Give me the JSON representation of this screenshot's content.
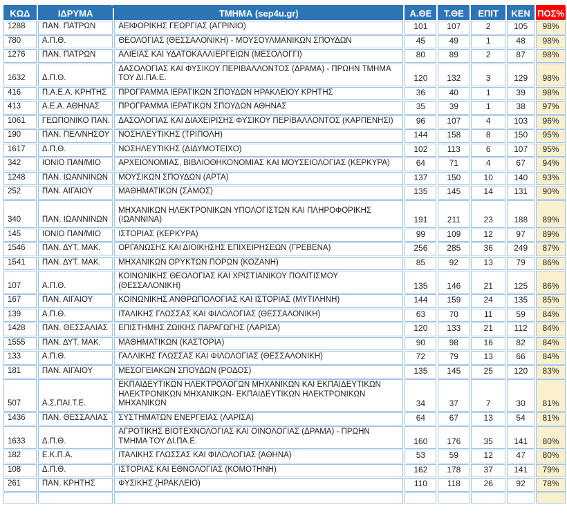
{
  "colors": {
    "header_bg": "#2E75B6",
    "pct_header_bg": "#FF0000",
    "header_text": "#FFFFFF",
    "pct_cell_bg": "#FBF0CE",
    "cell_border": "#9DC3E6",
    "body_text": "#1F1F1F"
  },
  "table": {
    "columns": [
      {
        "key": "code",
        "label": "ΚΩΔ"
      },
      {
        "key": "institution",
        "label": "ΙΔΡΥΜΑ"
      },
      {
        "key": "department",
        "label": "ΤΜΗΜΑ (sep4u.gr)"
      },
      {
        "key": "a_the",
        "label": "Α.ΘΕ"
      },
      {
        "key": "t_the",
        "label": "Τ.ΘΕ"
      },
      {
        "key": "epit",
        "label": "ΕΠΙΤ"
      },
      {
        "key": "ken",
        "label": "ΚΕΝ"
      },
      {
        "key": "pct",
        "label": "ΠΟΣ%"
      }
    ],
    "rows": [
      {
        "code": "1288",
        "institution": "ΠΑΝ. ΠΑΤΡΩΝ",
        "department": "ΑΕΙΦΟΡΙΚΗΣ ΓΕΩΡΓΙΑΣ (ΑΓΡΙΝΙΟ)",
        "a_the": "101",
        "t_the": "107",
        "epit": "2",
        "ken": "105",
        "pct": "98%"
      },
      {
        "code": "780",
        "institution": "Α.Π.Θ.",
        "department": "ΘΕΟΛΟΓΙΑΣ (ΘΕΣΣΑΛΟΝΙΚΗ) - ΜΟΥΣΟΥΛΜΑΝΙΚΩΝ ΣΠΟΥΔΩΝ",
        "a_the": "45",
        "t_the": "49",
        "epit": "1",
        "ken": "48",
        "pct": "98%"
      },
      {
        "code": "1276",
        "institution": "ΠΑΝ. ΠΑΤΡΩΝ",
        "department": "ΑΛΙΕΙΑΣ ΚΑΙ ΥΔΑΤΟΚΑΛΛΙΕΡΓΕΙΩΝ (ΜΕΣΟΛΟΓΓΙ)",
        "a_the": "80",
        "t_the": "89",
        "epit": "2",
        "ken": "87",
        "pct": "98%"
      },
      {
        "code": "1632",
        "institution": "Δ.Π.Θ.",
        "department": "ΔΑΣΟΛΟΓΙΑΣ ΚΑΙ ΦΥΣΙΚΟΥ ΠΕΡΙΒΑΛΛΟΝΤΟΣ (ΔΡΑΜΑ) - ΠΡΩΗΝ ΤΜΗΜΑ ΤΟΥ ΔΙ.ΠΑ.Ε.",
        "a_the": "120",
        "t_the": "132",
        "epit": "3",
        "ken": "129",
        "pct": "98%"
      },
      {
        "code": "416",
        "institution": "Π.Α.Ε.Α. ΚΡΗΤΗΣ",
        "department": "ΠΡΟΓΡΑΜΜΑ ΙΕΡΑΤΙΚΩΝ ΣΠΟΥΔΩΝ ΗΡΑΚΛΕΙΟΥ ΚΡΗΤΗΣ",
        "a_the": "36",
        "t_the": "40",
        "epit": "1",
        "ken": "39",
        "pct": "98%"
      },
      {
        "code": "413",
        "institution": "Α.Ε.Α. ΑΘΗΝΑΣ",
        "department": "ΠΡΟΓΡΑΜΜΑ ΙΕΡΑΤΙΚΩΝ ΣΠΟΥΔΩΝ ΑΘΗΝΑΣ",
        "a_the": "35",
        "t_the": "39",
        "epit": "1",
        "ken": "38",
        "pct": "97%"
      },
      {
        "code": "1061",
        "institution": "ΓΕΩΠΟΝΙΚΟ ΠΑΝ.",
        "department": "ΔΑΣΟΛΟΓΙΑΣ ΚΑΙ ΔΙΑΧΕΙΡΙΣΗΣ ΦΥΣΙΚΟΥ ΠΕΡΙΒΑΛΛΟΝΤΟΣ (ΚΑΡΠΕΝΗΣΙ)",
        "a_the": "96",
        "t_the": "107",
        "epit": "4",
        "ken": "103",
        "pct": "96%"
      },
      {
        "code": "190",
        "institution": "ΠΑΝ. ΠΕΛ/ΝΗΣΟΥ",
        "department": "ΝΟΣΗΛΕΥΤΙΚΗΣ (ΤΡΙΠΟΛΗ)",
        "a_the": "144",
        "t_the": "158",
        "epit": "8",
        "ken": "150",
        "pct": "95%"
      },
      {
        "code": "1617",
        "institution": "Δ.Π.Θ.",
        "department": "ΝΟΣΗΛΕΥΤΙΚΗΣ (ΔΙΔΥΜΟΤΕΙΧΟ)",
        "a_the": "102",
        "t_the": "113",
        "epit": "6",
        "ken": "107",
        "pct": "95%"
      },
      {
        "code": "342",
        "institution": "ΙΟΝΙΟ ΠΑΝ/ΜΙΟ",
        "department": "ΑΡΧΕΙΟΝΟΜΙΑΣ, ΒΙΒΛΙΟΘΗΚΟΝΟΜΙΑΣ ΚΑΙ ΜΟΥΣΕΙΟΛΟΓΙΑΣ (ΚΕΡΚΥΡΑ)",
        "a_the": "64",
        "t_the": "71",
        "epit": "4",
        "ken": "67",
        "pct": "94%"
      },
      {
        "code": "1248",
        "institution": "ΠΑΝ. ΙΩΑΝΝΙΝΩΝ",
        "department": "ΜΟΥΣΙΚΩΝ ΣΠΟΥΔΩΝ (ΑΡΤΑ)",
        "a_the": "137",
        "t_the": "150",
        "epit": "10",
        "ken": "140",
        "pct": "93%"
      },
      {
        "code": "252",
        "institution": "ΠΑΝ. ΑΙΓΑΙΟΥ",
        "department": "ΜΑΘΗΜΑΤΙΚΩΝ (ΣΑΜΟΣ)",
        "a_the": "135",
        "t_the": "145",
        "epit": "14",
        "ken": "131",
        "pct": "90%"
      },
      {
        "code": "340",
        "institution": "ΠΑΝ. ΙΩΑΝΝΙΝΩΝ",
        "department": "ΜΗΧΑΝΙΚΩΝ ΗΛΕΚΤΡΟΝΙΚΩΝ ΥΠΟΛΟΓΙΣΤΩΝ ΚΑΙ ΠΛΗΡΟΦΟΡΙΚΗΣ (ΙΩΑΝΝΙΝΑ)",
        "a_the": "191",
        "t_the": "211",
        "epit": "23",
        "ken": "188",
        "pct": "89%"
      },
      {
        "code": "145",
        "institution": "ΙΟΝΙΟ ΠΑΝ/ΜΙΟ",
        "department": "ΙΣΤΟΡΙΑΣ (ΚΕΡΚΥΡΑ)",
        "a_the": "99",
        "t_the": "109",
        "epit": "12",
        "ken": "97",
        "pct": "89%"
      },
      {
        "code": "1546",
        "institution": "ΠΑΝ. ΔΥΤ. ΜΑΚ.",
        "department": "ΟΡΓΑΝΩΣΗΣ ΚΑΙ ΔΙΟΙΚΗΣΗΣ ΕΠΙΧΕΙΡΗΣΕΩΝ (ΓΡΕΒΕΝΑ)",
        "a_the": "256",
        "t_the": "285",
        "epit": "36",
        "ken": "249",
        "pct": "87%"
      },
      {
        "code": "1541",
        "institution": "ΠΑΝ. ΔΥΤ. ΜΑΚ.",
        "department": "ΜΗΧΑΝΙΚΩΝ ΟΡΥΚΤΩΝ ΠΟΡΩΝ (ΚΟΖΑΝΗ)",
        "a_the": "85",
        "t_the": "92",
        "epit": "13",
        "ken": "79",
        "pct": "86%"
      },
      {
        "code": "107",
        "institution": "Α.Π.Θ.",
        "department": "ΚΟΙΝΩΝΙΚΗΣ ΘΕΟΛΟΓΙΑΣ ΚΑΙ ΧΡΙΣΤΙΑΝΙΚΟΥ ΠΟΛΙΤΙΣΜΟΥ (ΘΕΣΣΑΛΟΝΙΚΗ)",
        "a_the": "135",
        "t_the": "146",
        "epit": "21",
        "ken": "125",
        "pct": "86%"
      },
      {
        "code": "167",
        "institution": "ΠΑΝ. ΑΙΓΑΙΟΥ",
        "department": "ΚΟΙΝΩΝΙΚΗΣ ΑΝΘΡΩΠΟΛΟΓΙΑΣ ΚΑΙ ΙΣΤΟΡΙΑΣ (ΜΥΤΙΛΗΝΗ)",
        "a_the": "144",
        "t_the": "159",
        "epit": "24",
        "ken": "135",
        "pct": "85%"
      },
      {
        "code": "139",
        "institution": "Α.Π.Θ.",
        "department": "ΙΤΑΛΙΚΗΣ ΓΛΩΣΣΑΣ ΚΑΙ ΦΙΛΟΛΟΓΙΑΣ (ΘΕΣΣΑΛΟΝΙΚΗ)",
        "a_the": "63",
        "t_the": "70",
        "epit": "11",
        "ken": "59",
        "pct": "84%"
      },
      {
        "code": "1428",
        "institution": "ΠΑΝ. ΘΕΣΣΑΛΙΑΣ",
        "department": "ΕΠΙΣΤΗΜΗΣ ΖΩΙΚΗΣ ΠΑΡΑΓΩΓΗΣ (ΛΑΡΙΣΑ)",
        "a_the": "120",
        "t_the": "133",
        "epit": "21",
        "ken": "112",
        "pct": "84%"
      },
      {
        "code": "1555",
        "institution": "ΠΑΝ. ΔΥΤ. ΜΑΚ.",
        "department": "ΜΑΘΗΜΑΤΙΚΩΝ (ΚΑΣΤΟΡΙΑ)",
        "a_the": "90",
        "t_the": "98",
        "epit": "16",
        "ken": "82",
        "pct": "84%"
      },
      {
        "code": "133",
        "institution": "Α.Π.Θ.",
        "department": "ΓΑΛΛΙΚΗΣ ΓΛΩΣΣΑΣ ΚΑΙ ΦΙΛΟΛΟΓΙΑΣ (ΘΕΣΣΑΛΟΝΙΚΗ)",
        "a_the": "72",
        "t_the": "79",
        "epit": "13",
        "ken": "66",
        "pct": "84%"
      },
      {
        "code": "181",
        "institution": "ΠΑΝ. ΑΙΓΑΙΟΥ",
        "department": "ΜΕΣΟΓΕΙΑΚΩΝ ΣΠΟΥΔΩΝ (ΡΟΔΟΣ)",
        "a_the": "135",
        "t_the": "145",
        "epit": "25",
        "ken": "120",
        "pct": "83%"
      },
      {
        "code": "507",
        "institution": "Α.Σ.ΠΑΙ.Τ.Ε.",
        "department": "ΕΚΠΑΙΔΕΥΤΙΚΩΝ ΗΛΕΚΤΡΟΛΟΓΩΝ ΜΗΧΑΝΙΚΩΝ ΚΑΙ ΕΚΠΑΙΔΕΥΤΙΚΩΝ ΗΛΕΚΤΡΟΝΙΚΩΝ ΜΗΧΑΝΙΚΩΝ- ΕΚΠΑΙΔΕΥΤΙΚΩΝ ΗΛΕΚΤΡΟΝΙΚΩΝ ΜΗΧΑΝΙΚΩΝ",
        "a_the": "34",
        "t_the": "37",
        "epit": "7",
        "ken": "30",
        "pct": "81%"
      },
      {
        "code": "1436",
        "institution": "ΠΑΝ. ΘΕΣΣΑΛΙΑΣ",
        "department": "ΣΥΣΤΗΜΑΤΩΝ ΕΝΕΡΓΕΙΑΣ (ΛΑΡΙΣΑ)",
        "a_the": "64",
        "t_the": "67",
        "epit": "13",
        "ken": "54",
        "pct": "81%"
      },
      {
        "code": "1633",
        "institution": "Δ.Π.Θ.",
        "department": "ΑΓΡΟΤΙΚΗΣ ΒΙΟΤΕΧΝΟΛΟΓΙΑΣ ΚΑΙ ΟΙΝΟΛΟΓΙΑΣ (ΔΡΑΜΑ) - ΠΡΩΗΝ ΤΜΗΜΑ ΤΟΥ ΔΙ.ΠΑ.Ε.",
        "a_the": "160",
        "t_the": "176",
        "epit": "35",
        "ken": "141",
        "pct": "80%"
      },
      {
        "code": "182",
        "institution": "Ε.Κ.Π.Α.",
        "department": "ΙΤΑΛΙΚΗΣ ΓΛΩΣΣΑΣ ΚΑΙ ΦΙΛΟΛΟΓΙΑΣ (ΑΘΗΝΑ)",
        "a_the": "53",
        "t_the": "59",
        "epit": "12",
        "ken": "47",
        "pct": "80%"
      },
      {
        "code": "108",
        "institution": "Δ.Π.Θ.",
        "department": "ΙΣΤΟΡΙΑΣ ΚΑΙ ΕΘΝΟΛΟΓΙΑΣ (ΚΟΜΟΤΗΝΗ)",
        "a_the": "162",
        "t_the": "178",
        "epit": "37",
        "ken": "141",
        "pct": "79%"
      },
      {
        "code": "261",
        "institution": "ΠΑΝ. ΚΡΗΤΗΣ",
        "department": "ΦΥΣΙΚΗΣ (ΗΡΑΚΛΕΙΟ)",
        "a_the": "110",
        "t_the": "118",
        "epit": "26",
        "ken": "92",
        "pct": "78%"
      }
    ]
  },
  "layout_hints": {
    "row_heights": {
      "3": 33,
      "12": 40,
      "23": 39,
      "25": 33
    },
    "default_row_height": 19
  }
}
